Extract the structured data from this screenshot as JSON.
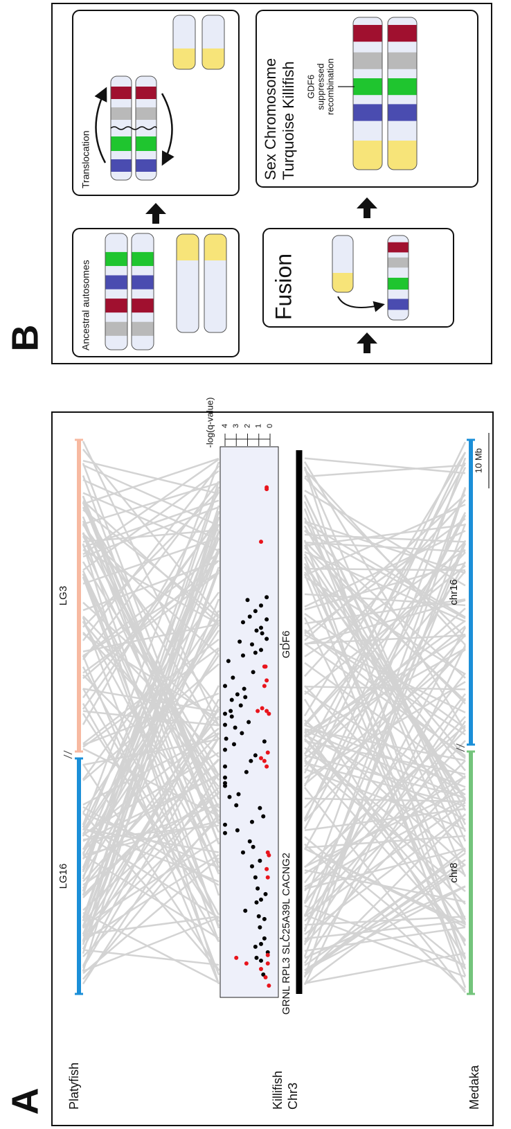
{
  "panel_a": {
    "label": "A",
    "platyfish": {
      "label": "Platyfish",
      "chromosomes": [
        {
          "name": "LG16",
          "color": "#1b8fd8"
        },
        {
          "name": "LG3",
          "color": "#f7b9a1"
        }
      ]
    },
    "killifish": {
      "label": [
        "Killifish",
        "Chr3"
      ],
      "color": "#000000",
      "xlim": [
        0,
        98
      ],
      "genes": [
        {
          "label": "GRNL RPL3 SLC25A39L CACNG2",
          "position": 10
        },
        {
          "label": "GDF6",
          "position": 63
        }
      ],
      "scatter": {
        "axis_label": "-log(q-value)",
        "ylim": [
          0,
          4
        ],
        "yticks": [
          0,
          1,
          2,
          3,
          4
        ],
        "series": [
          {
            "color": "#000000",
            "x": [
              3.5,
              6,
              6.5,
              7.5,
              8.5,
              9,
              10,
              12,
              13.5,
              14,
              15,
              16.5,
              17,
              18,
              19,
              21,
              23,
              24,
              25.5,
              26.5,
              27.5,
              29,
              29.5,
              30.5,
              31,
              32,
              33.5,
              34,
              35.5,
              36,
              37.5,
              38,
              39,
              40,
              41,
              42,
              43,
              44,
              45,
              45.5,
              46,
              47,
              48,
              48.5,
              49,
              50,
              50.5,
              51,
              52,
              53,
              53.5,
              54,
              55,
              55.5,
              57,
              58,
              60,
              61,
              61.5,
              62,
              63,
              63.5,
              64,
              65,
              65.5,
              66,
              67,
              67.5,
              68,
              69,
              70,
              71,
              71.5
            ],
            "values": [
              0.6,
              0.8,
              1.2,
              0.2,
              1.3,
              0.8,
              0.5,
              0.9,
              0.5,
              1,
              2.2,
              1.2,
              0.8,
              0.4,
              1.1,
              1.3,
              1.6,
              0.9,
              2.4,
              1.5,
              1.8,
              4,
              2.9,
              4,
              1.6,
              0.6,
              0.9,
              3,
              3.6,
              2.8,
              4,
              4,
              4,
              2.1,
              4,
              1.7,
              1.3,
              4,
              3.2,
              0.5,
              3.9,
              2.5,
              3.1,
              4,
              1.9,
              3.4,
              4,
              3.5,
              2.6,
              3.4,
              2.2,
              2.9,
              2.3,
              4,
              3.3,
              1.5,
              3.7,
              2.4,
              1.3,
              0.8,
              1.6,
              2.7,
              0.3,
              0.7,
              1.2,
              0.8,
              2.4,
              0.3,
              1.8,
              1.3,
              0.8,
              2,
              0.3
            ]
          },
          {
            "color": "#e8141c",
            "x": [
              1.5,
              3,
              4.5,
              5.5,
              5.5,
              6.5,
              7,
              21,
              22.5,
              25,
              25.5,
              41,
              42,
              42.5,
              43.5,
              50.5,
              51,
              51.5,
              51,
              55.5,
              56.5,
              59,
              59,
              81.5,
              91,
              91.3
            ],
            "values": [
              0.1,
              0.4,
              0.8,
              0.2,
              2.1,
              3,
              0.2,
              0.2,
              0.3,
              0.1,
              0.2,
              0.3,
              0.5,
              0.8,
              0.2,
              0.1,
              0.3,
              0.7,
              1.1,
              0.5,
              0.3,
              0.4,
              0.5,
              0.8,
              0.3,
              0.3
            ]
          }
        ]
      },
      "scale_bar": {
        "value": 10,
        "label": "10 Mb"
      }
    },
    "medaka": {
      "label": "Medaka",
      "chromosomes": [
        {
          "name": "chr8",
          "color": "#74c47c"
        },
        {
          "name": "chr16",
          "color": "#1b8fd8"
        }
      ]
    }
  },
  "panel_b": {
    "label": "B",
    "ancestral": "Ancestral autosomes",
    "translocation": "Translocation",
    "fusion": "Fusion",
    "sex_chromosome": [
      "Sex Chromosome",
      "Turquoise Killifish"
    ],
    "annotation": [
      "GDF6",
      "suppressed",
      "recombination"
    ]
  }
}
